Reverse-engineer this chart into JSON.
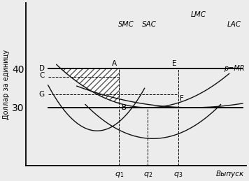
{
  "ylabel": "Доллар за единицу",
  "xlabel": "Выпуск",
  "p_mr": 40,
  "p_lower": 30,
  "p_c": 38,
  "p_g": 33.5,
  "q1": 5.5,
  "q2": 7.2,
  "q3": 9.0,
  "xlim": [
    0,
    13
  ],
  "ylim": [
    15,
    57
  ],
  "bg_color": "#ececec",
  "curve_color": "#111111",
  "label_fontsize": 7.5,
  "axis_fontsize": 7.5,
  "sac_a": 0.38,
  "sac_min_q": 7.2,
  "sac_min_p": 30,
  "smc_a": 1.4,
  "smc_min_q": 4.2,
  "smc_min_p": 24,
  "lac_a": 0.12,
  "lac_min_q": 9.8,
  "lac_min_p": 30,
  "lmc_a": 0.55,
  "lmc_min_q": 7.5,
  "lmc_min_p": 22
}
